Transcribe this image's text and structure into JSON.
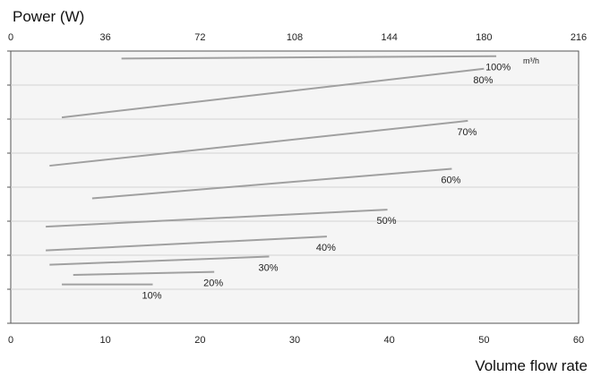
{
  "chart_data": {
    "type": "line",
    "title": "Power (W)",
    "xlabel": "Volume flow rate",
    "x_top_unit": "m³/h",
    "xlim": [
      0,
      60
    ],
    "x_ticks": [
      0,
      10,
      20,
      30,
      40,
      50,
      60
    ],
    "x_top_lim": [
      0,
      216
    ],
    "x_top_ticks": [
      0,
      36,
      72,
      108,
      144,
      180,
      216
    ],
    "ylim": [
      0,
      8
    ],
    "y_ticks": [
      0,
      1,
      2,
      3,
      4,
      5,
      6,
      7,
      8
    ],
    "grid": true,
    "series": [
      {
        "name": "100%",
        "x": [
          11.7,
          51.3
        ],
        "y": [
          7.78,
          7.85
        ]
      },
      {
        "name": "80%",
        "x": [
          5.4,
          50.0
        ],
        "y": [
          6.05,
          7.48
        ]
      },
      {
        "name": "70%",
        "x": [
          4.1,
          48.3
        ],
        "y": [
          4.63,
          5.95
        ]
      },
      {
        "name": "60%",
        "x": [
          8.6,
          46.6
        ],
        "y": [
          3.67,
          4.54
        ]
      },
      {
        "name": "50%",
        "x": [
          3.7,
          39.8
        ],
        "y": [
          2.84,
          3.34
        ]
      },
      {
        "name": "40%",
        "x": [
          3.7,
          33.4
        ],
        "y": [
          2.14,
          2.55
        ]
      },
      {
        "name": "30%",
        "x": [
          4.1,
          27.3
        ],
        "y": [
          1.72,
          1.96
        ]
      },
      {
        "name": "20%",
        "x": [
          6.6,
          21.5
        ],
        "y": [
          1.42,
          1.51
        ]
      },
      {
        "name": "10%",
        "x": [
          5.4,
          15.0
        ],
        "y": [
          1.14,
          1.14
        ]
      }
    ]
  }
}
